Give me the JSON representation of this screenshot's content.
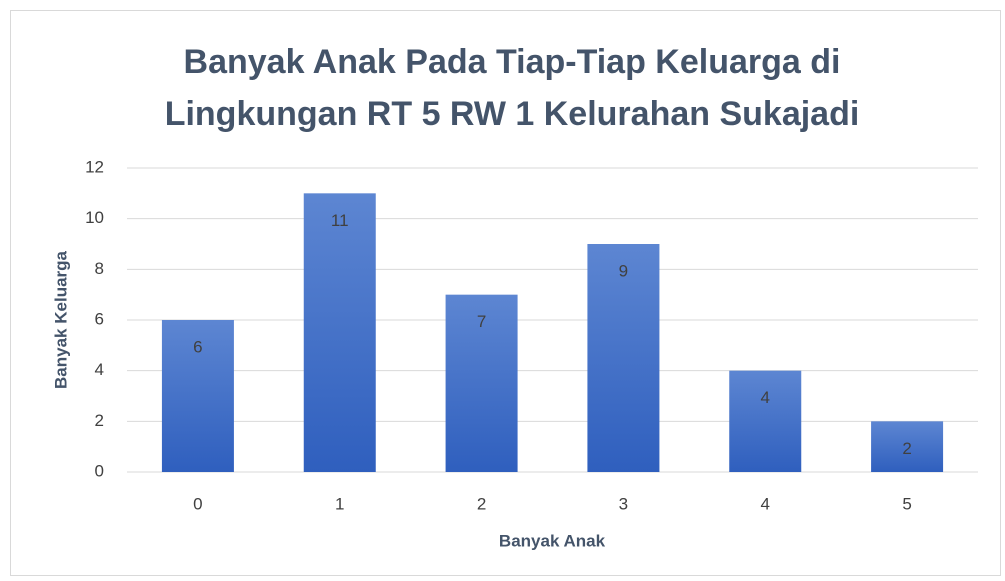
{
  "chart_data": {
    "type": "bar",
    "title": "Banyak Anak Pada Tiap-Tiap Keluarga di Lingkungan RT 5 RW 1 Kelurahan Sukajadi",
    "x_label": "Banyak Anak",
    "y_label": "Banyak Keluarga",
    "categories": [
      "0",
      "1",
      "2",
      "3",
      "4",
      "5"
    ],
    "values": [
      6,
      11,
      7,
      9,
      4,
      2
    ],
    "color": "#4472c4",
    "ylim": [
      0,
      12
    ],
    "yticks": [
      0,
      2,
      4,
      6,
      8,
      10,
      12
    ],
    "grid": true
  }
}
